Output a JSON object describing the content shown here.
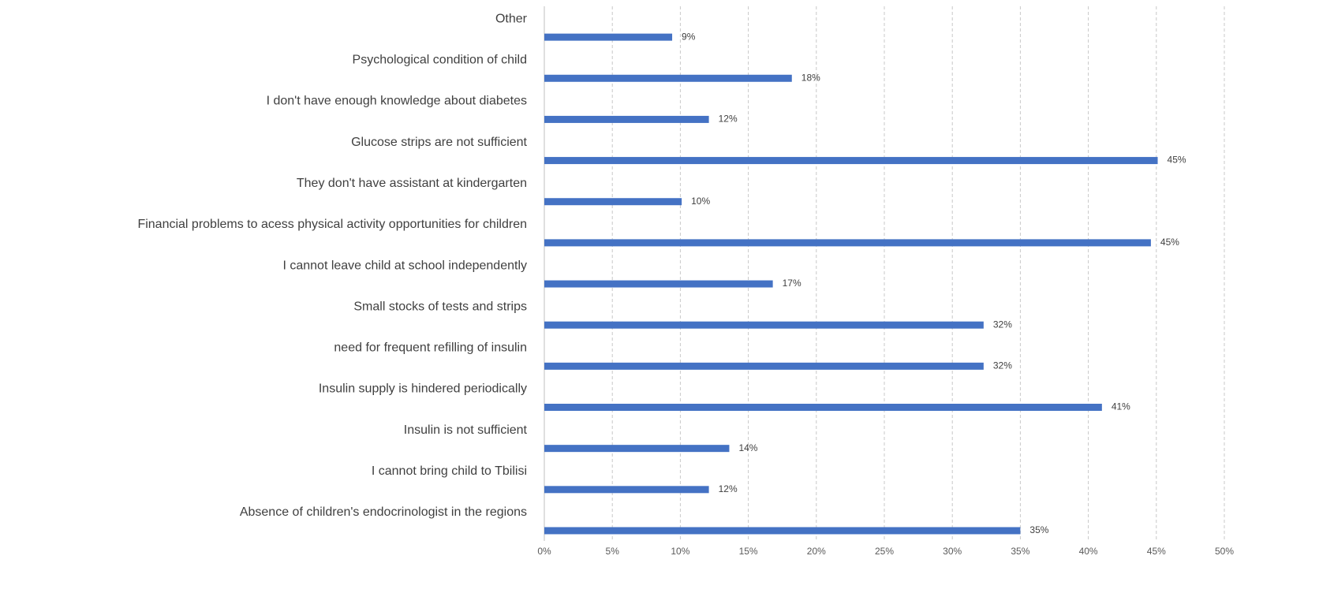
{
  "chart_data": {
    "type": "bar",
    "orientation": "horizontal",
    "categories": [
      "Other",
      "Psychological condition of child",
      "I don't have enough knowledge about diabetes",
      "Glucose strips are not sufficient",
      "They don't have assistant at kindergarten",
      "Financial problems to acess physical activity opportunities for children",
      "I cannot leave child at school independently",
      "Small stocks of tests and strips",
      "need for frequent refilling of insulin",
      "Insulin supply is hindered periodically",
      "Insulin is not sufficient",
      "I cannot bring child to Tbilisi",
      "Absence of children's endocrinologist in the regions"
    ],
    "values": [
      9.4,
      18.2,
      12.1,
      45.1,
      10.1,
      44.6,
      16.8,
      32.3,
      32.3,
      41.0,
      13.6,
      12.1,
      35.0
    ],
    "value_labels": [
      "9%",
      "18%",
      "12%",
      "45%",
      "10%",
      "45%",
      "17%",
      "32%",
      "32%",
      "41%",
      "14%",
      "12%",
      "35%"
    ],
    "color": "#4472c4",
    "xlim": [
      0,
      50
    ],
    "xticks": [
      {
        "value": 0,
        "label": "0%"
      },
      {
        "value": 5,
        "label": "5%"
      },
      {
        "value": 10,
        "label": "10%"
      },
      {
        "value": 15,
        "label": "15%"
      },
      {
        "value": 20,
        "label": "20%"
      },
      {
        "value": 25,
        "label": "25%"
      },
      {
        "value": 30,
        "label": "30%"
      },
      {
        "value": 35,
        "label": "35%"
      },
      {
        "value": 40,
        "label": "40%"
      },
      {
        "value": 45,
        "label": "45%"
      },
      {
        "value": 50,
        "label": "50%"
      }
    ],
    "grid": true
  }
}
